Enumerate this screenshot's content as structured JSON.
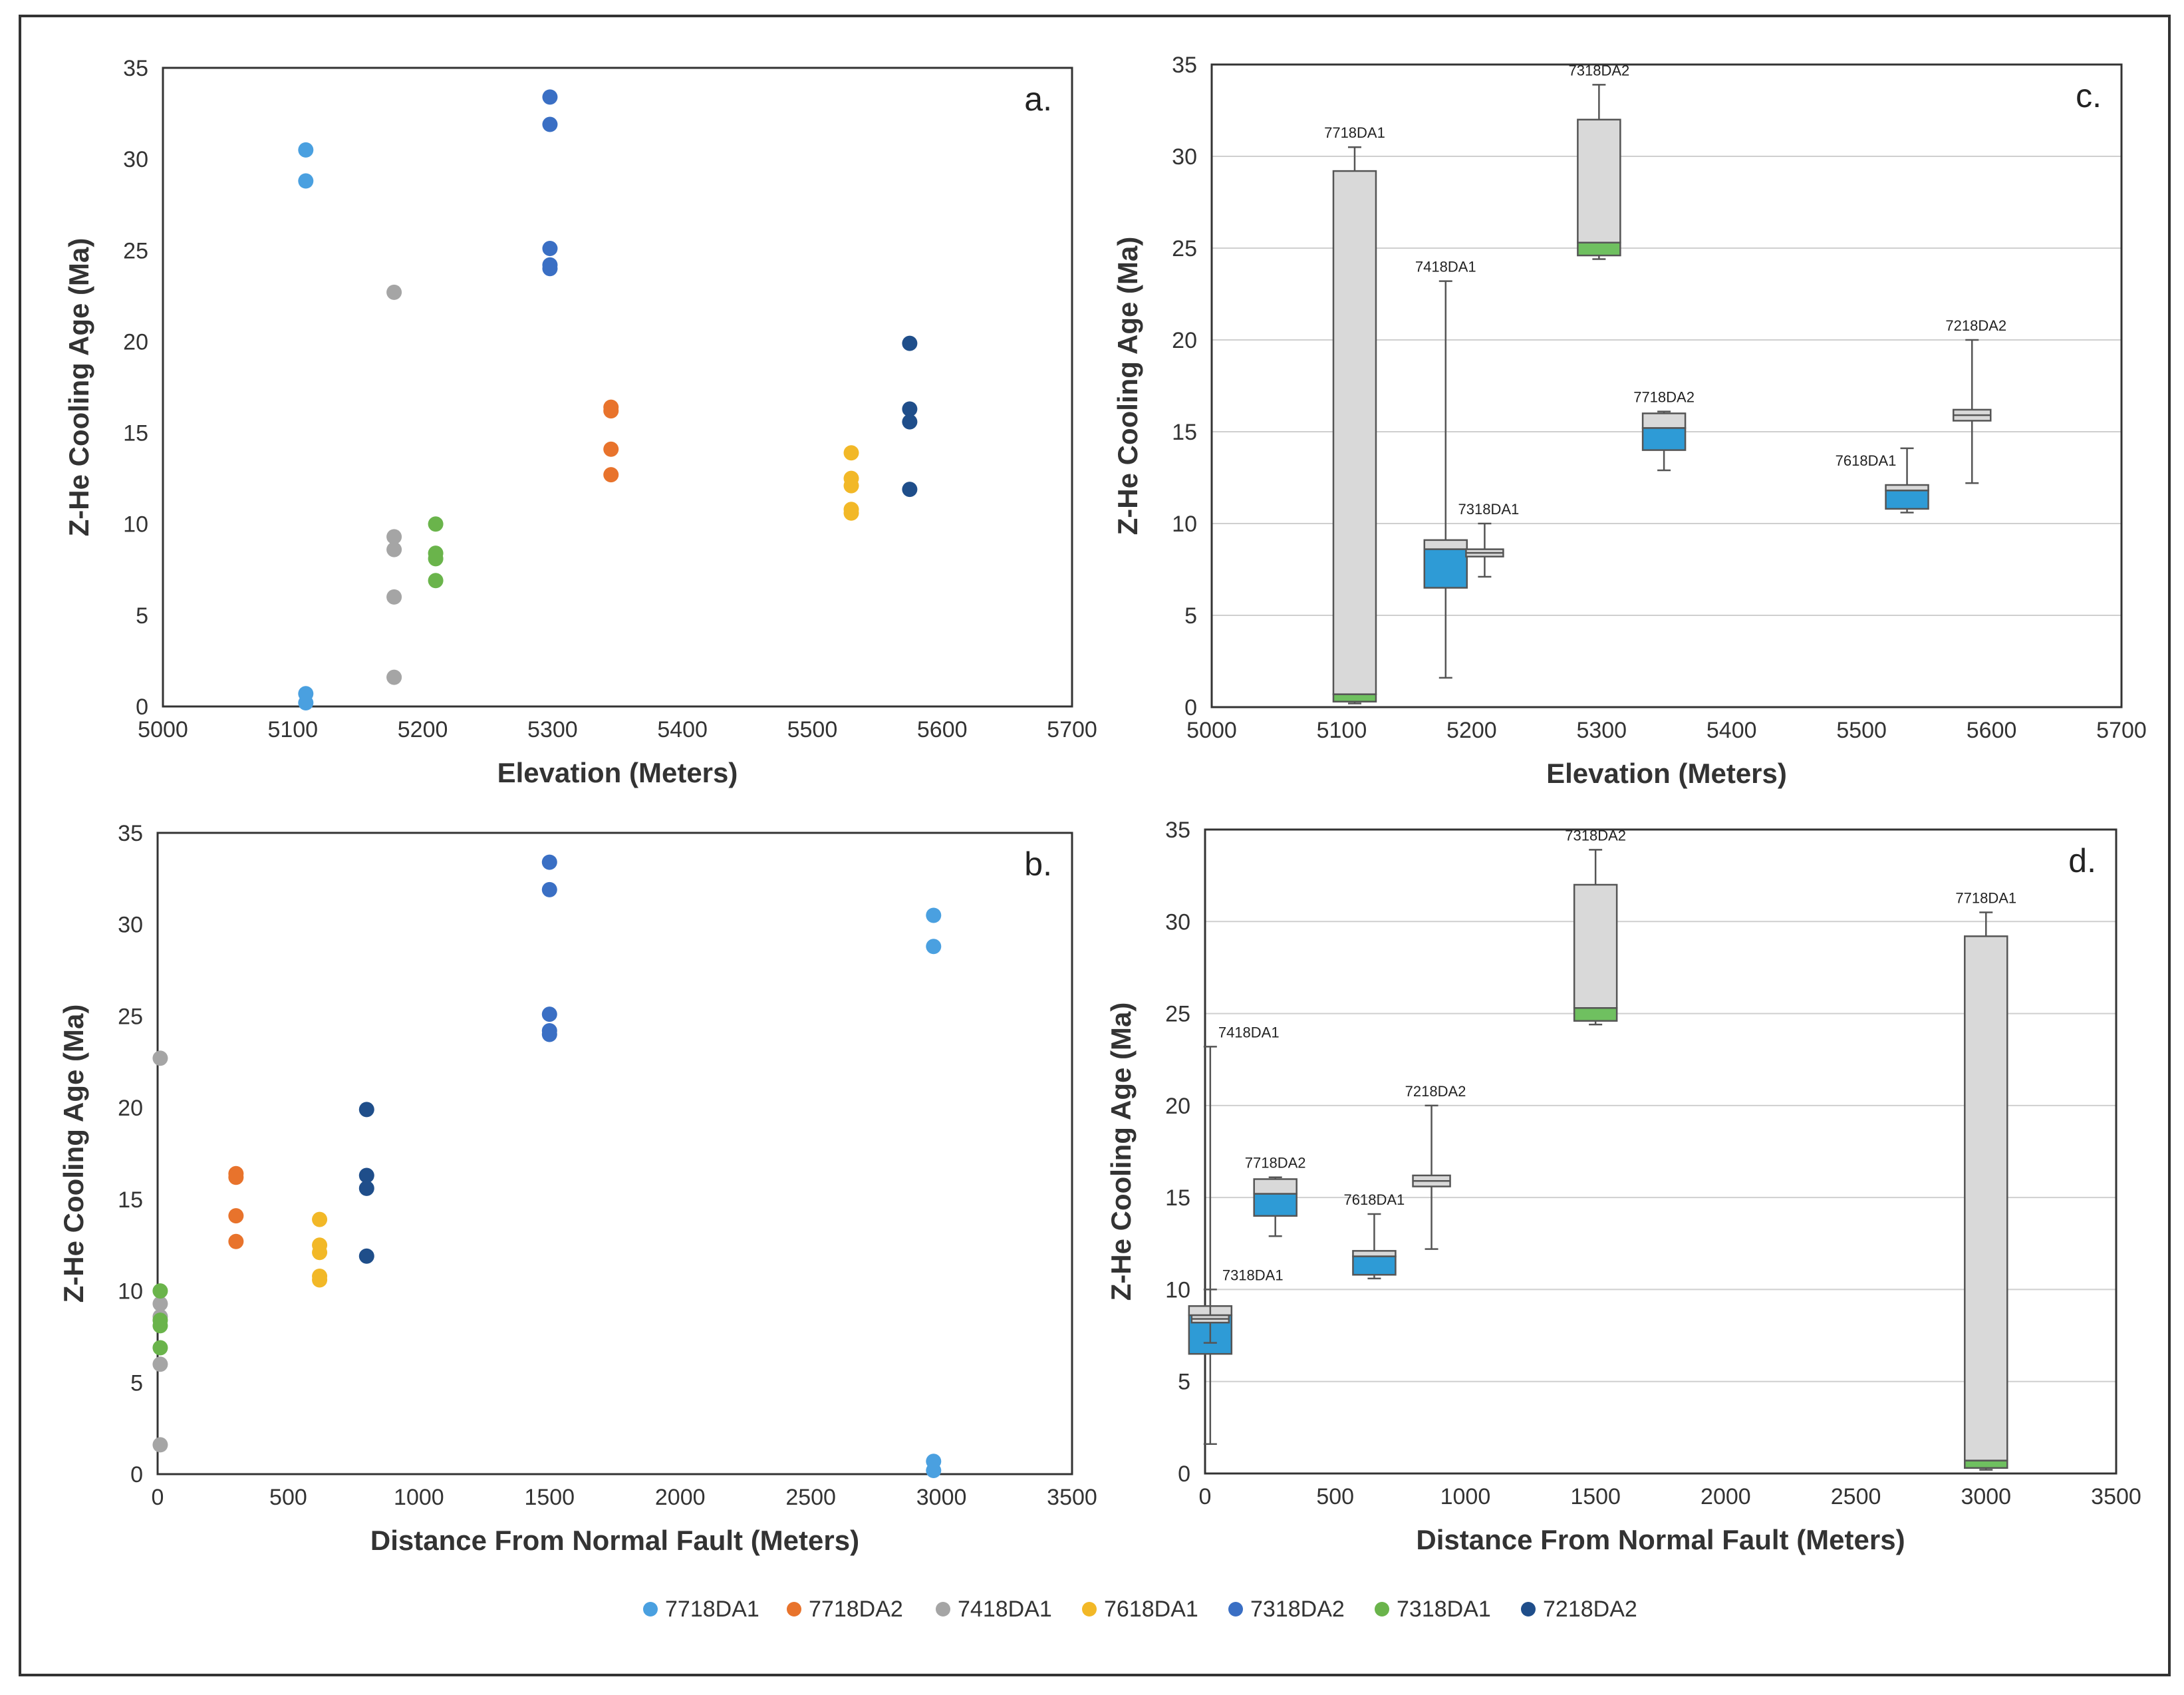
{
  "colors": {
    "7718DA1": "#4aa0e0",
    "7718DA2": "#e8732c",
    "7418DA1": "#a5a5a5",
    "7618DA1": "#f2b827",
    "7318DA2": "#3a6fc4",
    "7318DA1": "#6ab44b",
    "7218DA2": "#1f4e8a",
    "box_upper": "#d9d9d9",
    "box_blue": "#2e9bd6",
    "box_green": "#6fc060"
  },
  "legend": [
    "7718DA1",
    "7718DA2",
    "7418DA1",
    "7618DA1",
    "7318DA2",
    "7318DA1",
    "7218DA2"
  ],
  "chart_data": [
    {
      "panel": "a.",
      "type": "scatter",
      "xlabel": "Elevation (Meters)",
      "ylabel": "Z-He Cooling Age (Ma)",
      "xlim": [
        5000,
        5700
      ],
      "ylim": [
        0,
        35
      ],
      "xticks": [
        5000,
        5100,
        5200,
        5300,
        5400,
        5500,
        5600,
        5700
      ],
      "yticks": [
        0,
        5,
        10,
        15,
        20,
        25,
        30,
        35
      ],
      "grid": false,
      "series": [
        {
          "name": "7718DA1",
          "x": [
            5110,
            5110,
            5110,
            5110
          ],
          "y": [
            30.5,
            28.8,
            0.7,
            0.2
          ]
        },
        {
          "name": "7418DA1",
          "x": [
            5178,
            5178,
            5178,
            5178,
            5178
          ],
          "y": [
            22.7,
            9.3,
            8.6,
            6.0,
            1.6
          ]
        },
        {
          "name": "7318DA1",
          "x": [
            5210,
            5210,
            5210,
            5210
          ],
          "y": [
            10.0,
            8.4,
            8.1,
            6.9
          ]
        },
        {
          "name": "7318DA2",
          "x": [
            5298,
            5298,
            5298,
            5298,
            5298
          ],
          "y": [
            33.4,
            31.9,
            25.1,
            24.2,
            24.0
          ]
        },
        {
          "name": "7718DA2",
          "x": [
            5345,
            5345,
            5345,
            5345
          ],
          "y": [
            16.4,
            16.2,
            14.1,
            12.7
          ]
        },
        {
          "name": "7618DA1",
          "x": [
            5530,
            5530,
            5530,
            5530,
            5530
          ],
          "y": [
            13.9,
            12.5,
            12.1,
            10.8,
            10.6
          ]
        },
        {
          "name": "7218DA2",
          "x": [
            5575,
            5575,
            5575,
            5575
          ],
          "y": [
            19.9,
            16.3,
            15.6,
            11.9
          ]
        }
      ]
    },
    {
      "panel": "b.",
      "type": "scatter",
      "xlabel": "Distance From Normal Fault (Meters)",
      "ylabel": "Z-He Cooling Age (Ma)",
      "xlim": [
        0,
        3500
      ],
      "ylim": [
        0,
        35
      ],
      "xticks": [
        0,
        500,
        1000,
        1500,
        2000,
        2500,
        3000,
        3500
      ],
      "yticks": [
        0,
        5,
        10,
        15,
        20,
        25,
        30,
        35
      ],
      "grid": false,
      "series": [
        {
          "name": "7418DA1",
          "x": [
            10,
            10,
            10,
            10,
            10
          ],
          "y": [
            22.7,
            9.3,
            8.6,
            6.0,
            1.6
          ]
        },
        {
          "name": "7318DA1",
          "x": [
            10,
            10,
            10,
            10
          ],
          "y": [
            10.0,
            8.4,
            8.1,
            6.9
          ]
        },
        {
          "name": "7718DA2",
          "x": [
            300,
            300,
            300,
            300
          ],
          "y": [
            16.4,
            16.2,
            14.1,
            12.7
          ]
        },
        {
          "name": "7618DA1",
          "x": [
            620,
            620,
            620,
            620,
            620
          ],
          "y": [
            13.9,
            12.5,
            12.1,
            10.8,
            10.6
          ]
        },
        {
          "name": "7218DA2",
          "x": [
            800,
            800,
            800,
            800
          ],
          "y": [
            19.9,
            16.3,
            15.6,
            11.9
          ]
        },
        {
          "name": "7318DA2",
          "x": [
            1500,
            1500,
            1500,
            1500,
            1500
          ],
          "y": [
            33.4,
            31.9,
            25.1,
            24.2,
            24.0
          ]
        },
        {
          "name": "7718DA1",
          "x": [
            2970,
            2970,
            2970,
            2970
          ],
          "y": [
            30.5,
            28.8,
            0.7,
            0.2
          ]
        }
      ]
    },
    {
      "panel": "c.",
      "type": "box",
      "xlabel": "Elevation (Meters)",
      "ylabel": "Z-He Cooling Age (Ma)",
      "xlim": [
        5000,
        5700
      ],
      "ylim": [
        0,
        35
      ],
      "xticks": [
        5000,
        5100,
        5200,
        5300,
        5400,
        5500,
        5600,
        5700
      ],
      "yticks": [
        0,
        5,
        10,
        15,
        20,
        25,
        30,
        35
      ],
      "grid": true,
      "boxes": [
        {
          "name": "7718DA1",
          "x": 5110,
          "min": 0.2,
          "q1": 0.3,
          "median": 0.7,
          "q3": 29.2,
          "max": 30.5,
          "lower": "green"
        },
        {
          "name": "7418DA1",
          "x": 5180,
          "min": 1.6,
          "q1": 6.5,
          "median": 8.6,
          "q3": 9.1,
          "max": 23.2,
          "lower": "blue"
        },
        {
          "name": "7318DA1",
          "x": 5210,
          "min": 7.1,
          "q1": 8.2,
          "median": 8.4,
          "q3": 8.6,
          "max": 10.0,
          "lower": "none"
        },
        {
          "name": "7318DA2",
          "x": 5298,
          "min": 24.4,
          "q1": 24.6,
          "median": 25.3,
          "q3": 32.0,
          "max": 33.9,
          "lower": "green"
        },
        {
          "name": "7718DA2",
          "x": 5348,
          "min": 12.9,
          "q1": 14.0,
          "median": 15.2,
          "q3": 16.0,
          "max": 16.1,
          "lower": "blue"
        },
        {
          "name": "7618DA1",
          "x": 5535,
          "min": 10.6,
          "q1": 10.8,
          "median": 11.8,
          "q3": 12.1,
          "max": 14.1,
          "lower": "blue"
        },
        {
          "name": "7218DA2",
          "x": 5585,
          "min": 12.2,
          "q1": 15.6,
          "median": 15.9,
          "q3": 16.2,
          "max": 20.0,
          "lower": "none"
        }
      ]
    },
    {
      "panel": "d.",
      "type": "box",
      "xlabel": "Distance From Normal Fault (Meters)",
      "ylabel": "Z-He Cooling Age (Ma)",
      "xlim": [
        0,
        3500
      ],
      "ylim": [
        0,
        35
      ],
      "xticks": [
        0,
        500,
        1000,
        1500,
        2000,
        2500,
        3000,
        3500
      ],
      "yticks": [
        0,
        5,
        10,
        15,
        20,
        25,
        30,
        35
      ],
      "grid": true,
      "boxes": [
        {
          "name": "7418DA1",
          "x": 20,
          "min": 1.6,
          "q1": 6.5,
          "median": 8.6,
          "q3": 9.1,
          "max": 23.2,
          "lower": "blue"
        },
        {
          "name": "7318DA1",
          "x": 20,
          "min": 7.1,
          "q1": 8.2,
          "median": 8.4,
          "q3": 8.6,
          "max": 10.0,
          "lower": "none"
        },
        {
          "name": "7718DA2",
          "x": 270,
          "min": 12.9,
          "q1": 14.0,
          "median": 15.2,
          "q3": 16.0,
          "max": 16.1,
          "lower": "blue"
        },
        {
          "name": "7618DA1",
          "x": 650,
          "min": 10.6,
          "q1": 10.8,
          "median": 11.8,
          "q3": 12.1,
          "max": 14.1,
          "lower": "blue"
        },
        {
          "name": "7218DA2",
          "x": 870,
          "min": 12.2,
          "q1": 15.6,
          "median": 15.9,
          "q3": 16.2,
          "max": 20.0,
          "lower": "none"
        },
        {
          "name": "7318DA2",
          "x": 1500,
          "min": 24.4,
          "q1": 24.6,
          "median": 25.3,
          "q3": 32.0,
          "max": 33.9,
          "lower": "green"
        },
        {
          "name": "7718DA1",
          "x": 3000,
          "min": 0.2,
          "q1": 0.3,
          "median": 0.7,
          "q3": 29.2,
          "max": 30.5,
          "lower": "green"
        }
      ]
    }
  ]
}
